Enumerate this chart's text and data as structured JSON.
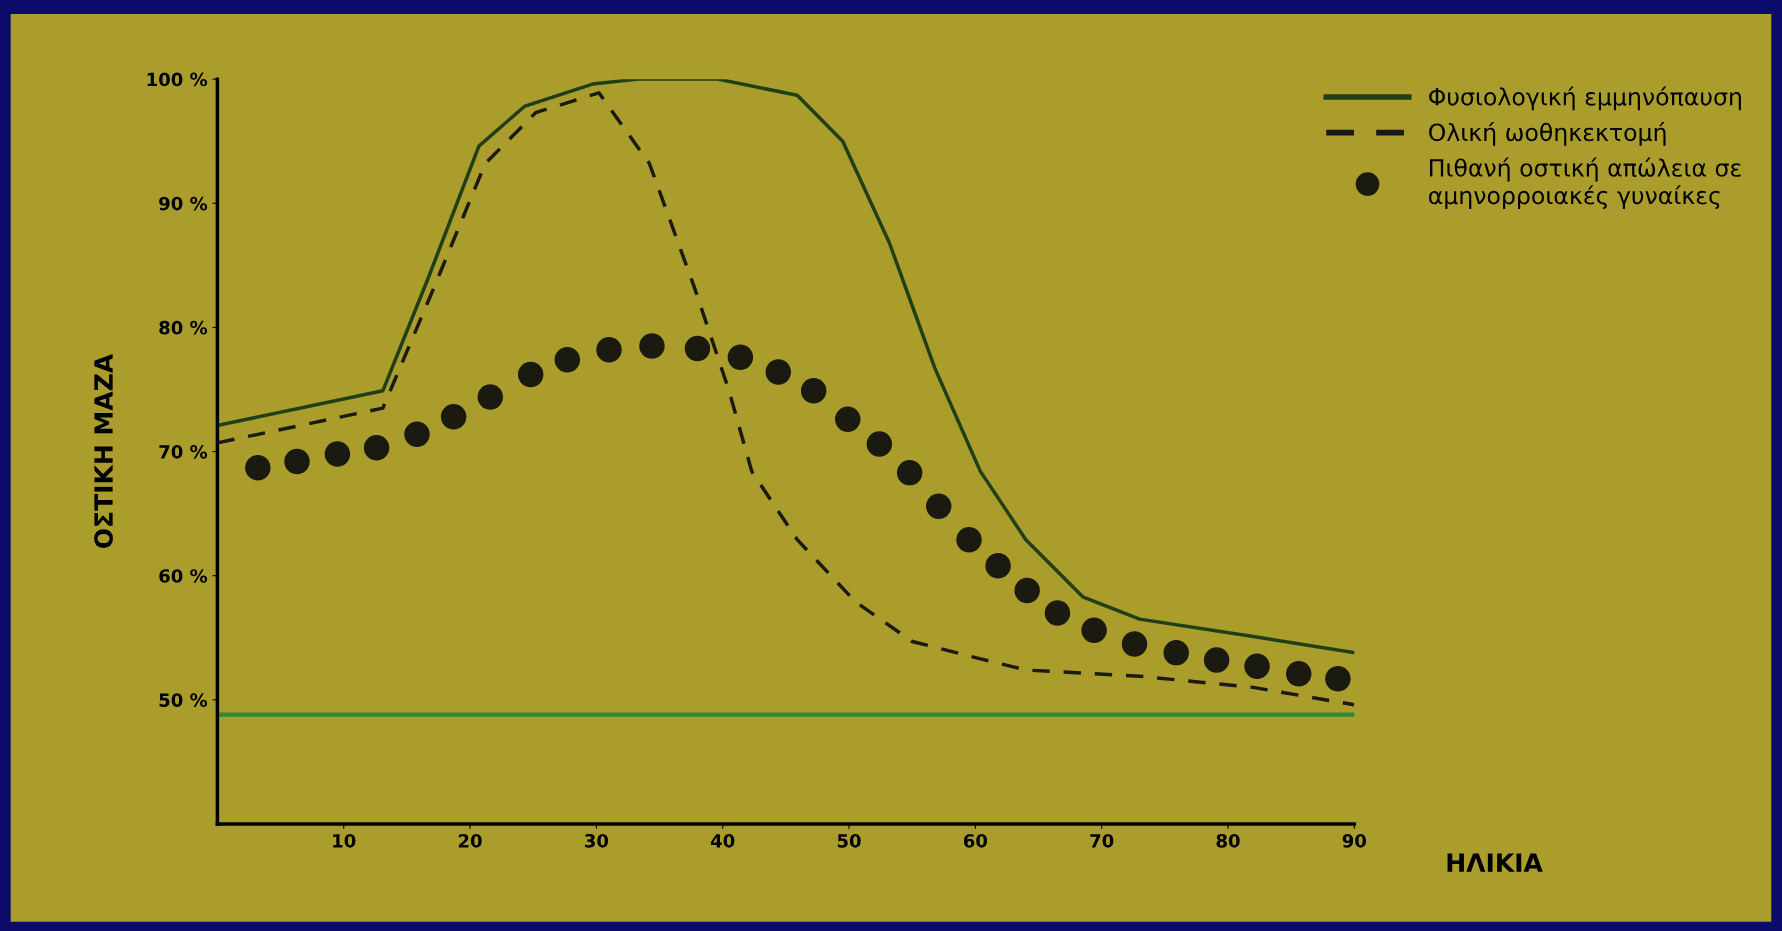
{
  "chart_data": {
    "type": "line",
    "xlabel": "ΗΛΙΚΙΑ",
    "ylabel": "ΟΣΤΙΚΗ ΜΑΖΑ",
    "xlim": [
      0,
      90
    ],
    "xticks": [
      10,
      20,
      30,
      40,
      50,
      60,
      70,
      80,
      90
    ],
    "ylim": [
      40,
      100
    ],
    "yticks": [
      {
        "value": 50,
        "label": "50 %"
      },
      {
        "value": 60,
        "label": "60 %"
      },
      {
        "value": 70,
        "label": "70 %"
      },
      {
        "value": 80,
        "label": "80 %"
      },
      {
        "value": 90,
        "label": "90 %"
      },
      {
        "value": 100,
        "label": "100 %"
      }
    ],
    "grid": false,
    "legend": "top right",
    "ref_lines": [
      {
        "axis": "y",
        "value": 48.8,
        "label": null,
        "color": "#2e8b3a"
      }
    ],
    "series": [
      {
        "name": "Φυσιολογική εμμηνόπαυση",
        "color": "#1f3f16",
        "line_style": "solid",
        "marker": "none",
        "x": [
          0,
          13.1,
          16.7,
          20.7,
          24.3,
          29.7,
          33.3,
          39.6,
          45.9,
          49.5,
          53.2,
          56.8,
          60.4,
          64,
          68.5,
          73,
          82,
          90
        ],
        "values": [
          72.1,
          74.9,
          84.0,
          94.6,
          97.8,
          99.6,
          100,
          100,
          98.7,
          95.0,
          86.8,
          76.7,
          68.4,
          62.9,
          58.3,
          56.5,
          55.1,
          53.8
        ]
      },
      {
        "name": "Ολική ωοθηκεκτομή",
        "color": "#1a1a10",
        "line_style": "dashed",
        "marker": "none",
        "x": [
          0,
          13.1,
          17.1,
          21.2,
          25.2,
          30.2,
          34.2,
          37.8,
          40.5,
          42.3,
          45.9,
          50.5,
          55,
          60.4,
          64,
          73,
          82,
          90
        ],
        "values": [
          70.7,
          73.5,
          83.1,
          93.2,
          97.3,
          98.9,
          93.2,
          83.1,
          74.9,
          68.4,
          62.9,
          57.9,
          54.7,
          53.3,
          52.4,
          51.9,
          51.0,
          49.6
        ]
      },
      {
        "name": "Πιθανή οστική απώλεια σε\nαμηνορροιακές γυναίκες",
        "color": "#1a1a10",
        "type": "scatter",
        "marker": "circle",
        "x": [
          3.2,
          6.3,
          9.5,
          12.6,
          15.8,
          18.7,
          21.6,
          24.8,
          27.7,
          31,
          34.4,
          38,
          41.4,
          44.4,
          47.2,
          49.9,
          52.4,
          54.8,
          57.1,
          59.5,
          61.8,
          64.1,
          66.5,
          69.4,
          72.6,
          75.9,
          79.1,
          82.3,
          85.6,
          88.7
        ],
        "values": [
          68.7,
          69.2,
          69.8,
          70.3,
          71.4,
          72.8,
          74.4,
          76.2,
          77.4,
          78.2,
          78.5,
          78.3,
          77.6,
          76.4,
          74.9,
          72.6,
          70.6,
          68.3,
          65.6,
          62.9,
          60.8,
          58.8,
          57,
          55.6,
          54.5,
          53.8,
          53.2,
          52.7,
          52.1,
          51.7
        ]
      }
    ]
  }
}
